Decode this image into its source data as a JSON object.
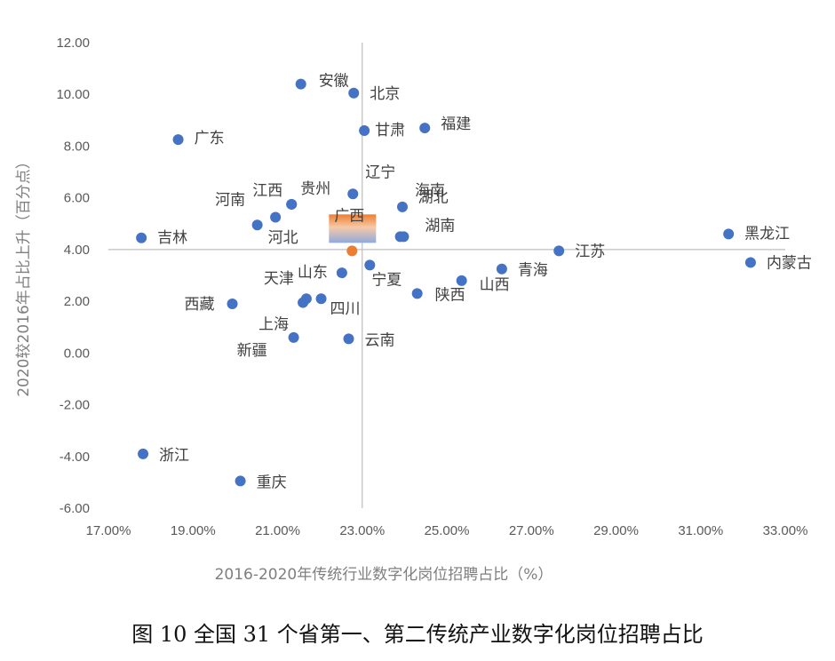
{
  "chart_data": {
    "type": "scatter",
    "xlabel": "2016-2020年传统行业数字化岗位招聘占比（%）",
    "ylabel": "2020较2016年占比上升（百分点）",
    "xlim": [
      0.17,
      0.33
    ],
    "ylim": [
      -6,
      12
    ],
    "x_ticks": [
      "17.00%",
      "19.00%",
      "21.00%",
      "23.00%",
      "25.00%",
      "27.00%",
      "29.00%",
      "31.00%",
      "33.00%"
    ],
    "y_ticks": [
      "12.00",
      "10.00",
      "8.00",
      "6.00",
      "4.00",
      "2.00",
      "0.00",
      "-2.00",
      "-4.00",
      "-6.00"
    ],
    "crosshair": {
      "x": 0.23,
      "y": 4.0
    },
    "grid": false,
    "colors": {
      "points": "#4472C4",
      "highlight": "#ED7D31",
      "axis": "#bfbfbf",
      "highlight_box_top": "#ED7D31",
      "highlight_box_bottom": "#8FAADC"
    },
    "points": [
      {
        "name": "安徽",
        "x": 0.2155,
        "y": 10.4
      },
      {
        "name": "北京",
        "x": 0.228,
        "y": 10.05
      },
      {
        "name": "广东",
        "x": 0.1865,
        "y": 8.25
      },
      {
        "name": "甘肃",
        "x": 0.2305,
        "y": 8.6
      },
      {
        "name": "福建",
        "x": 0.2448,
        "y": 8.7
      },
      {
        "name": "辽宁",
        "x": 0.2278,
        "y": 6.15
      },
      {
        "name": "贵州",
        "x": 0.2133,
        "y": 5.75
      },
      {
        "name": "江西",
        "x": 0.2133,
        "y": 5.75
      },
      {
        "name": "海南",
        "x": 0.2395,
        "y": 5.65
      },
      {
        "name": "河南",
        "x": 0.2095,
        "y": 5.25
      },
      {
        "name": "河北",
        "x": 0.2052,
        "y": 4.95
      },
      {
        "name": "湖北",
        "x": 0.239,
        "y": 4.5
      },
      {
        "name": "湖南",
        "x": 0.2398,
        "y": 4.5
      },
      {
        "name": "吉林",
        "x": 0.1778,
        "y": 4.45
      },
      {
        "name": "广西",
        "x": 0.2276,
        "y": 3.95,
        "highlight": true
      },
      {
        "name": "黑龙江",
        "x": 0.3166,
        "y": 4.6
      },
      {
        "name": "江苏",
        "x": 0.2765,
        "y": 3.95
      },
      {
        "name": "内蒙古",
        "x": 0.3218,
        "y": 3.5
      },
      {
        "name": "宁夏",
        "x": 0.2318,
        "y": 3.4
      },
      {
        "name": "青海",
        "x": 0.263,
        "y": 3.25
      },
      {
        "name": "山东",
        "x": 0.2252,
        "y": 3.1
      },
      {
        "name": "山西",
        "x": 0.2535,
        "y": 2.8
      },
      {
        "name": "陕西",
        "x": 0.243,
        "y": 2.3
      },
      {
        "name": "天津",
        "x": 0.2168,
        "y": 2.1
      },
      {
        "name": "四川",
        "x": 0.2203,
        "y": 2.1
      },
      {
        "name": "上海",
        "x": 0.216,
        "y": 1.95
      },
      {
        "name": "西藏",
        "x": 0.1993,
        "y": 1.9
      },
      {
        "name": "新疆",
        "x": 0.2138,
        "y": 0.6
      },
      {
        "name": "云南",
        "x": 0.2268,
        "y": 0.55
      },
      {
        "name": "浙江",
        "x": 0.1782,
        "y": -3.9
      },
      {
        "name": "重庆",
        "x": 0.2012,
        "y": -4.95
      }
    ]
  },
  "caption": "图 10  全国 31 个省第一、第二传统产业数字化岗位招聘占比"
}
